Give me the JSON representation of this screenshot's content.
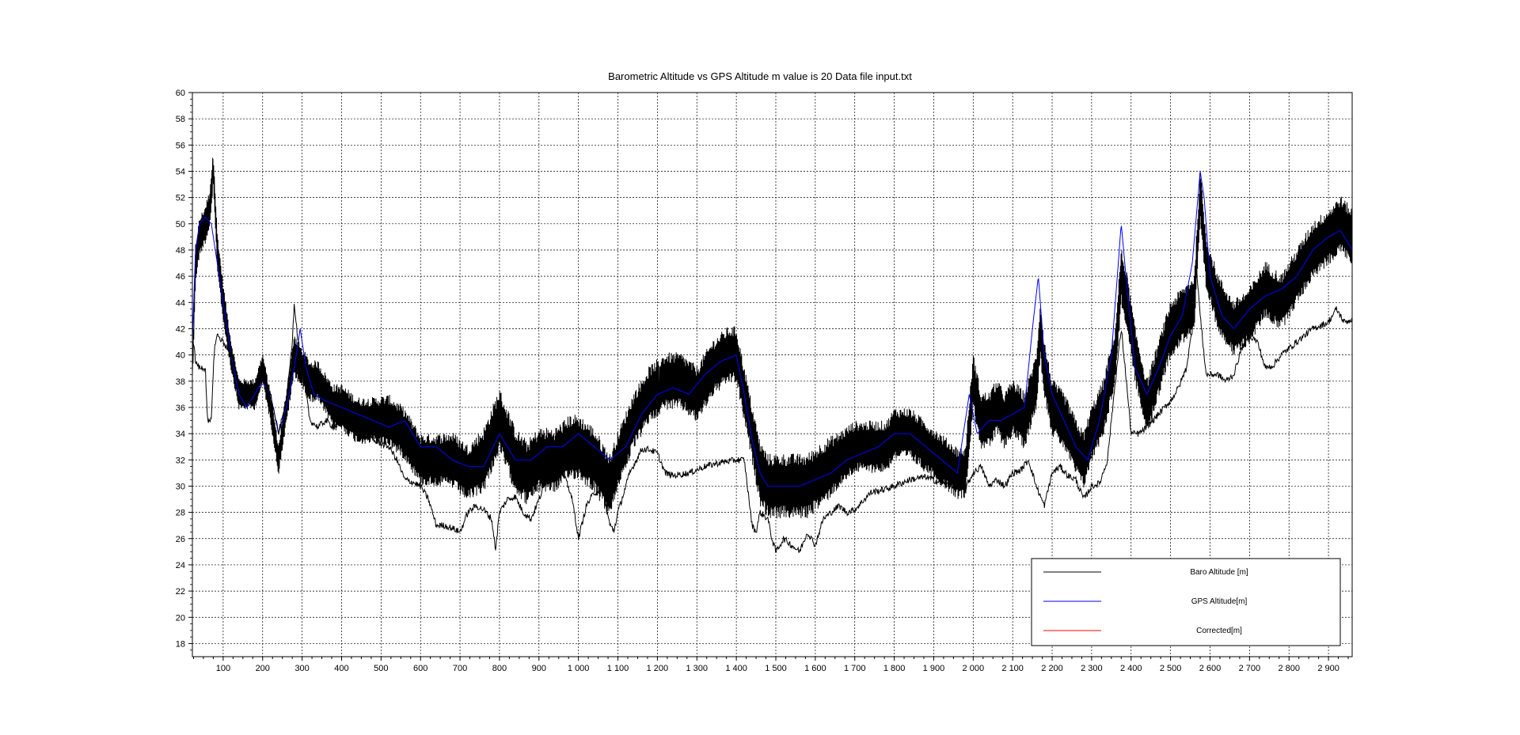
{
  "chart_data": {
    "type": "line",
    "title": "Barometric Altitude vs GPS Altitude m value is 20 Data file input.txt",
    "xlabel": "",
    "ylabel": "",
    "xlim": [
      22,
      2960
    ],
    "ylim": [
      17,
      60
    ],
    "grid": true,
    "legend_position": "bottom-right",
    "x_ticks": [
      100,
      200,
      300,
      400,
      500,
      600,
      700,
      800,
      900,
      1000,
      1100,
      1200,
      1300,
      1400,
      1500,
      1600,
      1700,
      1800,
      1900,
      2000,
      2100,
      2200,
      2300,
      2400,
      2500,
      2600,
      2700,
      2800,
      2900
    ],
    "x_tick_labels": [
      "100",
      "200",
      "300",
      "400",
      "500",
      "600",
      "700",
      "800",
      "900",
      "1 000",
      "1 100",
      "1 200",
      "1 300",
      "1 400",
      "1 500",
      "1 600",
      "1 700",
      "1 800",
      "1 900",
      "2 000",
      "2 100",
      "2 200",
      "2 300",
      "2 400",
      "2 500",
      "2 600",
      "2 700",
      "2 800",
      "2 900"
    ],
    "y_ticks": [
      18,
      20,
      22,
      24,
      26,
      28,
      30,
      32,
      34,
      36,
      38,
      40,
      42,
      44,
      46,
      48,
      50,
      52,
      54,
      56,
      58,
      60
    ],
    "series": [
      {
        "name": "Baro Altitude [m]",
        "color": "#000000",
        "style": "noisy-band",
        "x": [
          22,
          30,
          40,
          55,
          65,
          75,
          85,
          100,
          120,
          140,
          160,
          180,
          200,
          220,
          240,
          260,
          280,
          300,
          320,
          340,
          360,
          380,
          400,
          440,
          480,
          520,
          560,
          600,
          640,
          680,
          720,
          760,
          800,
          840,
          870,
          900,
          940,
          980,
          1000,
          1040,
          1080,
          1100,
          1140,
          1180,
          1220,
          1260,
          1300,
          1340,
          1380,
          1400,
          1420,
          1440,
          1460,
          1480,
          1500,
          1540,
          1580,
          1620,
          1660,
          1700,
          1740,
          1780,
          1800,
          1840,
          1880,
          1920,
          1960,
          1980,
          2000,
          2020,
          2040,
          2060,
          2080,
          2100,
          2130,
          2160,
          2170,
          2180,
          2200,
          2230,
          2260,
          2280,
          2300,
          2330,
          2360,
          2375,
          2390,
          2410,
          2440,
          2470,
          2500,
          2530,
          2560,
          2575,
          2590,
          2620,
          2660,
          2700,
          2740,
          2780,
          2820,
          2860,
          2900,
          2930,
          2960
        ],
        "center": [
          38,
          47,
          49,
          50,
          51,
          54,
          48,
          44,
          40,
          37,
          37,
          37,
          39,
          36,
          32,
          36,
          40,
          39,
          38,
          38,
          37,
          36,
          36,
          35,
          35,
          35,
          34,
          32,
          32,
          32,
          31,
          32,
          35,
          32,
          31,
          32,
          32,
          33,
          33,
          32,
          30,
          32,
          35,
          37,
          38,
          38,
          37,
          39,
          40,
          40,
          37,
          34,
          31,
          30,
          30,
          30,
          30,
          31,
          32,
          33,
          33,
          33,
          34,
          34,
          33,
          32,
          31,
          31,
          38,
          35,
          35,
          36,
          35,
          36,
          35,
          38,
          42,
          39,
          36,
          35,
          33,
          32,
          34,
          36,
          40,
          46,
          44,
          40,
          36,
          39,
          42,
          43,
          44,
          52,
          47,
          44,
          42,
          43,
          45,
          44,
          46,
          48,
          49,
          50,
          49,
          48
        ],
        "amplitude": [
          0.6,
          1.5,
          1.5,
          1.5,
          1.5,
          1.5,
          1.5,
          1.5,
          1.2,
          1.2,
          1.2,
          1.2,
          1.2,
          1.2,
          1.2,
          1.4,
          1.6,
          1.6,
          1.6,
          1.6,
          1.6,
          1.8,
          1.8,
          1.8,
          1.8,
          2.0,
          2.0,
          2.0,
          2.0,
          2.2,
          2.2,
          2.5,
          2.5,
          2.5,
          2.5,
          2.5,
          2.5,
          2.5,
          2.5,
          2.5,
          2.5,
          2.2,
          2.2,
          2.2,
          2.2,
          2.2,
          2.2,
          2.2,
          2.2,
          2.2,
          2.2,
          2.2,
          2.5,
          2.5,
          2.5,
          2.5,
          2.5,
          2.5,
          2.2,
          2.0,
          2.0,
          2.0,
          2.0,
          2.0,
          2.0,
          2.0,
          2.0,
          2.0,
          2.2,
          2.2,
          2.2,
          2.2,
          2.2,
          2.2,
          2.2,
          2.2,
          2.2,
          2.2,
          2.2,
          2.2,
          2.2,
          2.2,
          2.2,
          2.2,
          2.2,
          2.2,
          2.2,
          2.2,
          2.2,
          2.2,
          2.2,
          2.2,
          2.2,
          2.2,
          2.2,
          2.2,
          2.2,
          2.2,
          2.2,
          2.2,
          2.2,
          2.2,
          2.2,
          2.2,
          2.2,
          2.2
        ]
      },
      {
        "name": "GPS Altitude[m]",
        "color": "#0000ff",
        "style": "line",
        "x": [
          22,
          30,
          40,
          55,
          70,
          85,
          100,
          120,
          140,
          160,
          180,
          200,
          220,
          240,
          260,
          280,
          295,
          310,
          330,
          360,
          400,
          440,
          480,
          520,
          560,
          600,
          640,
          680,
          720,
          760,
          800,
          840,
          880,
          920,
          960,
          1000,
          1040,
          1080,
          1120,
          1160,
          1200,
          1240,
          1280,
          1320,
          1360,
          1400,
          1420,
          1440,
          1460,
          1480,
          1520,
          1560,
          1600,
          1640,
          1680,
          1720,
          1760,
          1800,
          1840,
          1880,
          1920,
          1960,
          1990,
          2010,
          2040,
          2070,
          2100,
          2130,
          2150,
          2165,
          2180,
          2200,
          2230,
          2260,
          2290,
          2320,
          2350,
          2365,
          2375,
          2390,
          2410,
          2440,
          2470,
          2500,
          2530,
          2555,
          2575,
          2585,
          2600,
          2630,
          2660,
          2700,
          2740,
          2780,
          2820,
          2860,
          2900,
          2930,
          2960
        ],
        "y": [
          41,
          48,
          50,
          50.5,
          50,
          47,
          44,
          40,
          37,
          36,
          37,
          38,
          37,
          34,
          36,
          39,
          42,
          39,
          37,
          36.5,
          36,
          35.5,
          35,
          34.5,
          35,
          33,
          33,
          32,
          31.5,
          31.5,
          34,
          32,
          32,
          33,
          33,
          34,
          33,
          32,
          33,
          35.5,
          37,
          37.5,
          37,
          38.5,
          39.5,
          40,
          37,
          33.5,
          31,
          30,
          30,
          30,
          30.5,
          31,
          32,
          32.5,
          33,
          34,
          34,
          33,
          32,
          31,
          37,
          34,
          35,
          35,
          35.5,
          36,
          42,
          46,
          40,
          37,
          35,
          33,
          32,
          35,
          40,
          46,
          50,
          45,
          39,
          37,
          39,
          41.5,
          43,
          47,
          54,
          52,
          46,
          43,
          42,
          43.5,
          44.5,
          45,
          46,
          48,
          49,
          49.5,
          48
        ]
      },
      {
        "name": "Corrected[m]",
        "color": "#ff0000",
        "style": "hidden",
        "x": [],
        "y": []
      },
      {
        "name": "Baro Altitude [m] (thin)",
        "color": "#000000",
        "style": "line",
        "x": [
          22,
          25,
          30,
          40,
          55,
          60,
          62,
          70,
          75,
          80,
          85,
          100,
          120,
          140,
          160,
          180,
          200,
          220,
          240,
          260,
          275,
          280,
          290,
          300,
          320,
          340,
          360,
          380,
          400,
          440,
          480,
          520,
          540,
          560,
          580,
          600,
          620,
          640,
          660,
          680,
          700,
          720,
          740,
          760,
          780,
          790,
          800,
          820,
          840,
          860,
          880,
          900,
          920,
          940,
          960,
          980,
          990,
          1000,
          1020,
          1040,
          1060,
          1080,
          1090,
          1100,
          1130,
          1160,
          1180,
          1200,
          1220,
          1240,
          1280,
          1320,
          1360,
          1400,
          1420,
          1440,
          1450,
          1460,
          1480,
          1490,
          1500,
          1520,
          1540,
          1560,
          1580,
          1600,
          1620,
          1640,
          1660,
          1680,
          1700,
          1740,
          1780,
          1800,
          1840,
          1880,
          1920,
          1960,
          1980,
          2000,
          2020,
          2040,
          2060,
          2080,
          2100,
          2120,
          2140,
          2160,
          2180,
          2200,
          2220,
          2240,
          2260,
          2280,
          2300,
          2320,
          2340,
          2360,
          2375,
          2385,
          2400,
          2420,
          2440,
          2470,
          2500,
          2520,
          2540,
          2555,
          2565,
          2575,
          2590,
          2620,
          2640,
          2660,
          2680,
          2700,
          2720,
          2740,
          2760,
          2780,
          2820,
          2860,
          2900,
          2920,
          2940,
          2960
        ],
        "y": [
          41,
          41,
          39.5,
          39,
          39,
          35,
          34.8,
          35,
          39,
          41,
          41.5,
          41,
          40,
          38,
          36.5,
          36.5,
          38,
          37,
          34,
          36.5,
          41,
          44,
          41,
          39,
          35,
          34.5,
          35,
          34.5,
          34.8,
          34,
          33.5,
          33,
          32,
          30.5,
          30.3,
          30,
          29,
          27,
          27,
          26.8,
          26.5,
          28,
          28.5,
          28.2,
          27.5,
          25.2,
          28,
          29,
          29.2,
          28,
          27.5,
          29,
          30.5,
          30.5,
          31,
          29.5,
          28,
          26,
          28.5,
          29.5,
          29.8,
          27,
          26.6,
          28,
          31,
          32.8,
          32.8,
          32.5,
          31,
          30.8,
          31,
          31.5,
          31.8,
          32,
          32,
          27,
          26.5,
          28,
          27.5,
          26,
          25,
          26,
          25.5,
          25,
          26.5,
          25.5,
          27.5,
          28,
          28.5,
          28,
          28.2,
          29.5,
          29.8,
          30,
          30.5,
          30.7,
          30.2,
          30,
          29.8,
          31,
          31.5,
          30,
          30.5,
          30,
          31,
          31.2,
          32,
          30,
          28.5,
          31,
          31.5,
          30.8,
          30.5,
          29,
          30,
          30.2,
          32,
          38,
          42,
          39,
          34,
          34,
          34.5,
          35.5,
          36.5,
          37.5,
          39,
          42,
          47,
          43,
          38.5,
          38.5,
          38,
          38.5,
          40.5,
          41.5,
          41,
          39,
          39.2,
          40,
          41,
          42,
          42.5,
          43.5,
          42.5,
          42.7
        ]
      }
    ],
    "legend": [
      {
        "label": "Baro Altitude [m]",
        "color": "#000000"
      },
      {
        "label": "GPS Altitude[m]",
        "color": "#0000ff"
      },
      {
        "label": "Corrected[m]",
        "color": "#ff0000"
      }
    ]
  }
}
